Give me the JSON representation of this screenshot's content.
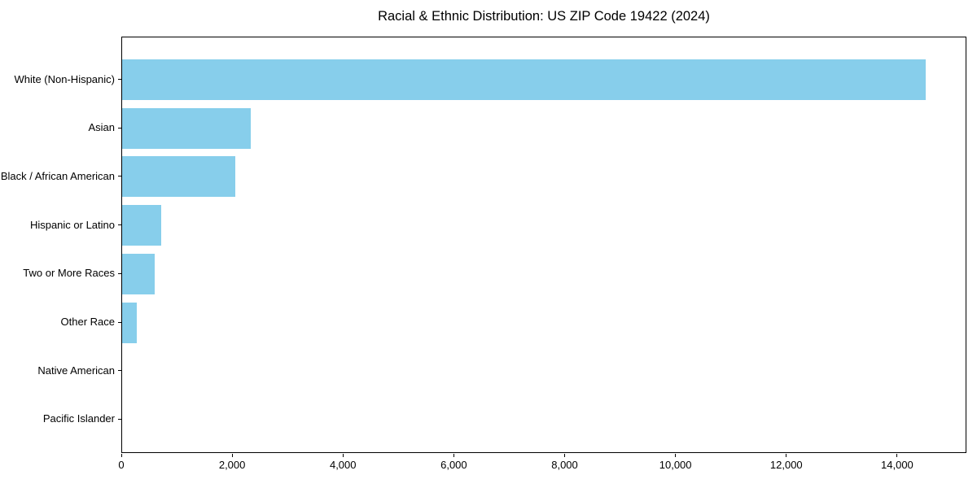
{
  "chart_data": {
    "type": "bar",
    "orientation": "horizontal",
    "title": "Racial & Ethnic Distribution: US ZIP Code 19422 (2024)",
    "categories": [
      "White (Non-Hispanic)",
      "Asian",
      "Black / African American",
      "Hispanic or Latino",
      "Two or More Races",
      "Other Race",
      "Native American",
      "Pacific Islander"
    ],
    "values": [
      14500,
      2320,
      2040,
      700,
      590,
      260,
      0,
      0
    ],
    "xlabel": "",
    "ylabel": "",
    "xlim": [
      0,
      15250
    ],
    "xticks": [
      0,
      2000,
      4000,
      6000,
      8000,
      10000,
      12000,
      14000
    ],
    "xtick_labels": [
      "0",
      "2,000",
      "4,000",
      "6,000",
      "8,000",
      "10,000",
      "12,000",
      "14,000"
    ],
    "bar_color": "#87CEEB",
    "background_color": "#ffffff",
    "spine_color": "#000000",
    "grid": false,
    "legend": null
  }
}
